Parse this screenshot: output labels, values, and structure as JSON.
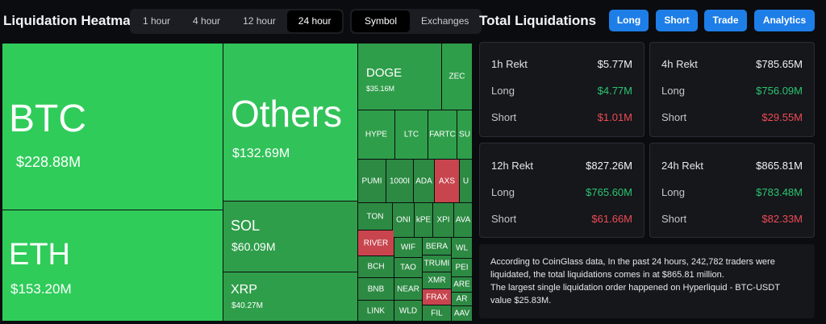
{
  "header": {
    "title": "Liquidation Heatmap",
    "time_options": [
      "1 hour",
      "4 hour",
      "12 hour",
      "24 hour"
    ],
    "time_selected": "24 hour",
    "view_options": [
      "Symbol",
      "Exchanges"
    ],
    "view_selected": "Symbol"
  },
  "totals": {
    "title": "Total Liquidations",
    "buttons": [
      "Long",
      "Short",
      "Trade",
      "Analytics"
    ]
  },
  "treemap": {
    "btc": {
      "name": "BTC",
      "value": "$228.88M"
    },
    "eth": {
      "name": "ETH",
      "value": "$153.20M"
    },
    "others": {
      "name": "Others",
      "value": "$132.69M"
    },
    "sol": {
      "name": "SOL",
      "value": "$60.09M"
    },
    "xrp": {
      "name": "XRP",
      "value": "$40.27M"
    },
    "doge": {
      "name": "DOGE",
      "value": "$35.16M"
    },
    "small": [
      "ZEC",
      "HYPE",
      "LTC",
      "FARTC",
      "SU",
      "PUMI",
      "1000I",
      "ADA",
      "AXS",
      "U",
      "TON",
      "ONI",
      "kPE",
      "XPI",
      "AVA",
      "RIVER",
      "WIF",
      "BERA",
      "WL",
      "BCH",
      "TAO",
      "TRUMI",
      "PEI",
      "XMR",
      "BNB",
      "NEAR",
      "ARE",
      "FRAX",
      "AR",
      "LINK",
      "WLD",
      "FIL",
      "AAV"
    ]
  },
  "cards": [
    {
      "period": "1h Rekt",
      "total": "$5.77M",
      "long_label": "Long",
      "long": "$4.77M",
      "short_label": "Short",
      "short": "$1.01M"
    },
    {
      "period": "4h Rekt",
      "total": "$785.65M",
      "long_label": "Long",
      "long": "$756.09M",
      "short_label": "Short",
      "short": "$29.55M"
    },
    {
      "period": "12h Rekt",
      "total": "$827.26M",
      "long_label": "Long",
      "long": "$765.60M",
      "short_label": "Short",
      "short": "$61.66M"
    },
    {
      "period": "24h Rekt",
      "total": "$865.81M",
      "long_label": "Long",
      "long": "$783.48M",
      "short_label": "Short",
      "short": "$82.33M"
    }
  ],
  "info": {
    "line1": "According to CoinGlass data, In the past 24 hours, 242,782 traders were liquidated, the total liquidations comes in at $865.81 million.",
    "line2": "The largest single liquidation order happened on Hyperliquid - BTC-USDT value $25.83M."
  },
  "colors": {
    "long_green": "#2bc46f",
    "short_red": "#ef4a55",
    "button_blue": "#1e7ee8",
    "tile_green": "#2fcc5a",
    "tile_red": "#c8454e"
  }
}
